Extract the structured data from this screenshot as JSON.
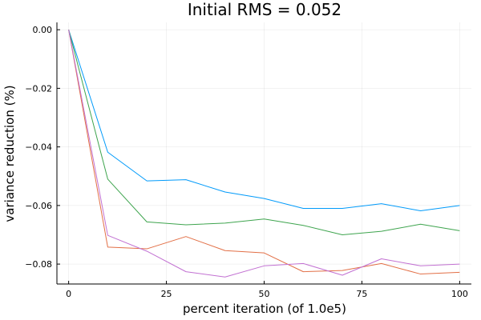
{
  "chart_data": {
    "type": "line",
    "title": "Initial RMS = 0.052",
    "xlabel": "percent iteration (of 1.0e5)",
    "ylabel": "variance reduction (%)",
    "xlim": [
      -3,
      103
    ],
    "ylim": [
      -0.0868,
      0.0025
    ],
    "xticks": [
      0,
      25,
      50,
      75,
      100
    ],
    "yticks": [
      0.0,
      -0.02,
      -0.04,
      -0.06,
      -0.08
    ],
    "xtick_labels": [
      "0",
      "25",
      "50",
      "75",
      "100"
    ],
    "ytick_labels": [
      "0.00",
      "−0.02",
      "−0.04",
      "−0.06",
      "−0.08"
    ],
    "grid": true,
    "legend": "none",
    "x": [
      0,
      10,
      20,
      30,
      40,
      50,
      60,
      70,
      80,
      90,
      100
    ],
    "series": [
      {
        "color": "#009AFA",
        "values": [
          0.0,
          -0.0418,
          -0.0516,
          -0.0512,
          -0.0554,
          -0.0576,
          -0.061,
          -0.061,
          -0.0594,
          -0.0618,
          -0.06
        ]
      },
      {
        "color": "#E26F46",
        "values": [
          0.0,
          -0.0742,
          -0.0748,
          -0.0706,
          -0.0754,
          -0.0762,
          -0.0826,
          -0.0822,
          -0.0798,
          -0.0834,
          -0.0828
        ]
      },
      {
        "color": "#3EA44E",
        "values": [
          0.0,
          -0.051,
          -0.0656,
          -0.0666,
          -0.066,
          -0.0646,
          -0.0668,
          -0.07,
          -0.0688,
          -0.0664,
          -0.0686
        ]
      },
      {
        "color": "#C271D2",
        "values": [
          0.0,
          -0.0702,
          -0.0756,
          -0.0826,
          -0.0844,
          -0.0806,
          -0.0798,
          -0.0838,
          -0.0782,
          -0.0806,
          -0.08
        ]
      }
    ]
  }
}
